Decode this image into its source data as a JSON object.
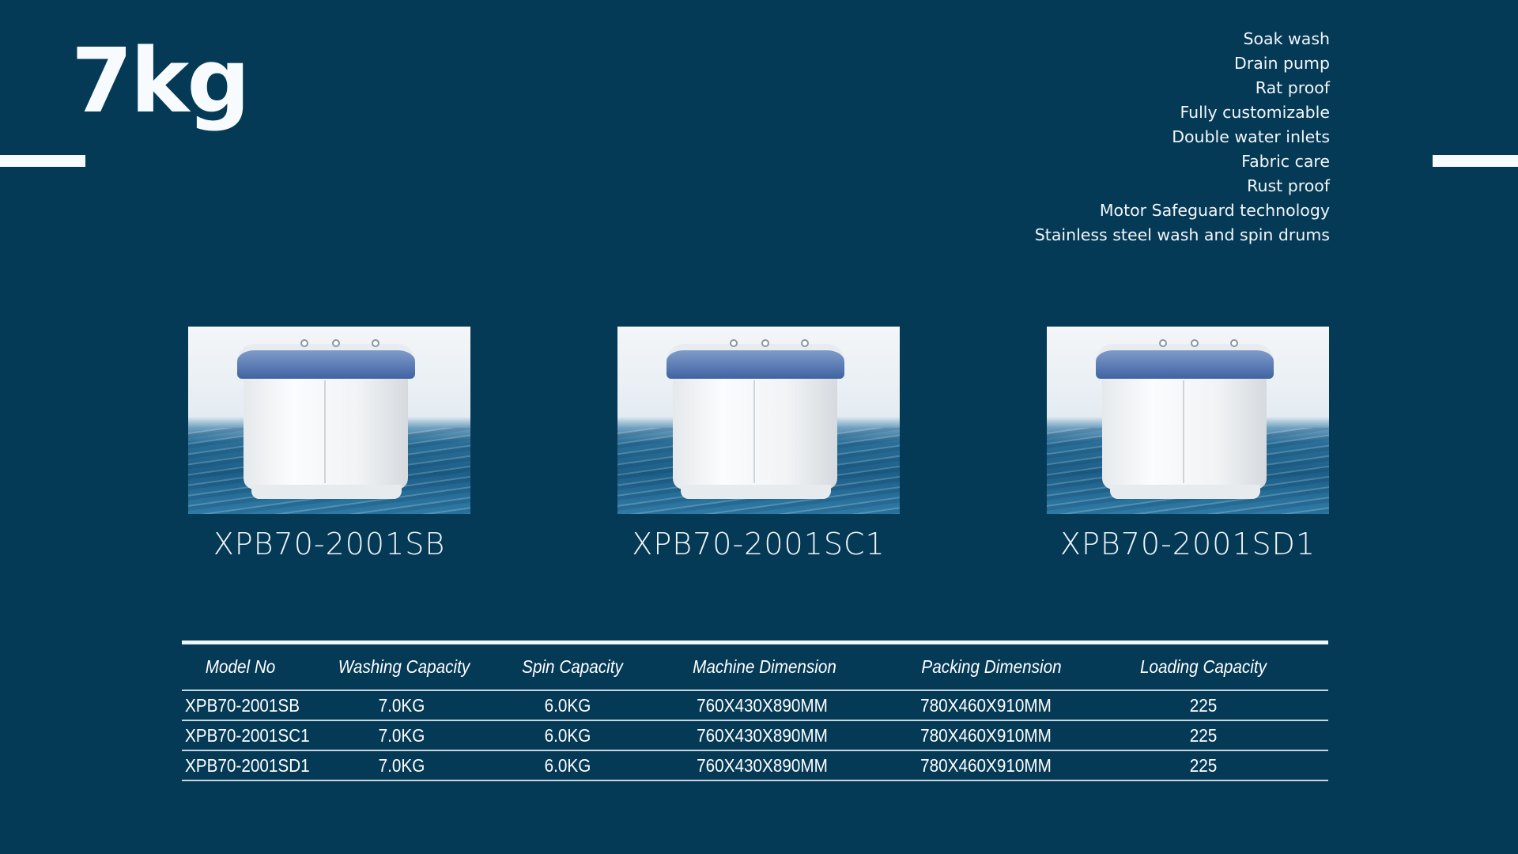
{
  "title": "7kg",
  "features": [
    "Soak wash",
    "Drain pump",
    "Rat proof",
    "Fully customizable",
    "Double water inlets",
    "Fabric care",
    "Rust proof",
    "Motor Safeguard technology",
    "Stainless steel wash and spin drums"
  ],
  "products": [
    {
      "model": "XPB70-2001SB"
    },
    {
      "model": "XPB70-2001SC1"
    },
    {
      "model": "XPB70-2001SD1"
    }
  ],
  "table": {
    "headers": [
      "Model No",
      "Washing Capacity",
      "Spin Capacity",
      "Machine Dimension",
      "Packing Dimension",
      "Loading Capacity"
    ],
    "rows": [
      [
        "XPB70-2001SB",
        "7.0KG",
        "6.0KG",
        "760X430X890MM",
        "780X460X910MM",
        "225"
      ],
      [
        "XPB70-2001SC1",
        "7.0KG",
        "6.0KG",
        "760X430X890MM",
        "780X460X910MM",
        "225"
      ],
      [
        "XPB70-2001SD1",
        "7.0KG",
        "6.0KG",
        "760X430X890MM",
        "780X460X910MM",
        "225"
      ]
    ]
  },
  "colors": {
    "background": "#053a57",
    "text": "#ffffff",
    "lid": "#3f63a3"
  }
}
